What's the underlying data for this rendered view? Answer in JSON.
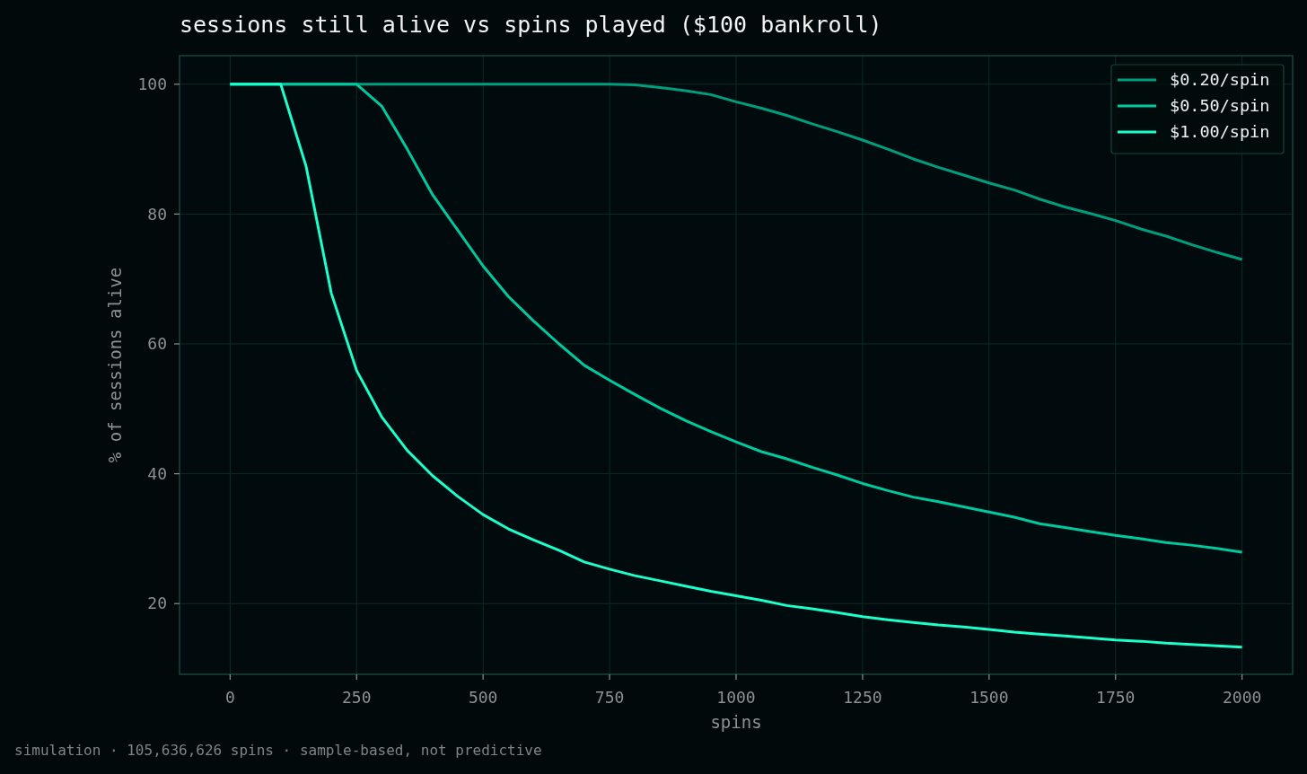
{
  "chart_data": {
    "type": "line",
    "title": "sessions still alive vs spins played ($100 bankroll)",
    "xlabel": "spins",
    "ylabel": "% of sessions alive",
    "annotations": [
      "simulation · 105,636,626 spins · sample-based, not predictive"
    ],
    "x": [
      0,
      50,
      100,
      150,
      200,
      250,
      300,
      350,
      400,
      450,
      500,
      550,
      600,
      650,
      700,
      750,
      800,
      850,
      900,
      950,
      1000,
      1050,
      1100,
      1150,
      1200,
      1250,
      1300,
      1350,
      1400,
      1450,
      1500,
      1550,
      1600,
      1650,
      1700,
      1750,
      1800,
      1850,
      1900,
      1950,
      2000
    ],
    "series": [
      {
        "name": "$0.20/spin",
        "color": "#009e7f",
        "values": [
          100,
          100,
          100,
          100,
          100,
          100,
          100,
          100,
          100,
          100,
          100,
          100,
          100,
          100,
          100,
          100,
          99.9,
          99.5,
          99.0,
          98.4,
          97.3,
          96.3,
          95.2,
          93.9,
          92.7,
          91.4,
          90.0,
          88.5,
          87.2,
          86.0,
          84.8,
          83.7,
          82.3,
          81.1,
          80.1,
          79.0,
          77.7,
          76.6,
          75.3,
          74.1,
          73.0
        ]
      },
      {
        "name": "$0.50/spin",
        "color": "#00c9a0",
        "values": [
          100,
          100,
          100,
          100,
          100,
          100,
          96.6,
          90.0,
          83.0,
          77.5,
          72.0,
          67.3,
          63.5,
          60.0,
          56.7,
          54.4,
          52.2,
          50.1,
          48.2,
          46.5,
          44.9,
          43.4,
          42.3,
          41.0,
          39.8,
          38.5,
          37.4,
          36.4,
          35.7,
          34.9,
          34.1,
          33.3,
          32.3,
          31.7,
          31.1,
          30.5,
          30.0,
          29.4,
          29.0,
          28.5,
          27.9
        ]
      },
      {
        "name": "$1.00/spin",
        "color": "#1affcc",
        "values": [
          100,
          100,
          100,
          87.4,
          67.8,
          55.9,
          48.7,
          43.6,
          39.7,
          36.5,
          33.7,
          31.5,
          29.8,
          28.2,
          26.4,
          25.3,
          24.3,
          23.5,
          22.7,
          21.9,
          21.2,
          20.5,
          19.7,
          19.2,
          18.6,
          18.0,
          17.5,
          17.1,
          16.7,
          16.4,
          16.0,
          15.6,
          15.3,
          15.0,
          14.7,
          14.4,
          14.2,
          13.9,
          13.7,
          13.5,
          13.3
        ]
      }
    ],
    "xlim": [
      -100,
      2100
    ],
    "ylim": [
      9.1,
      104.4
    ],
    "xticks": [
      0,
      250,
      500,
      750,
      1000,
      1250,
      1500,
      1750,
      2000
    ],
    "yticks": [
      20,
      40,
      60,
      80,
      100
    ],
    "grid": true,
    "legend": "top right",
    "line_style": "solid"
  }
}
